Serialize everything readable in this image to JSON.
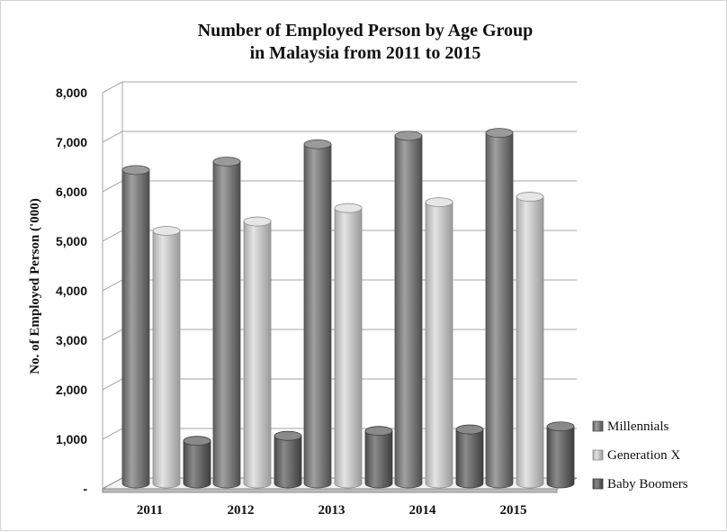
{
  "chart_data": {
    "type": "bar",
    "title": "Number of Employed Person by Age Group",
    "subtitle": "in Malaysia from 2011 to 2015",
    "xlabel": "",
    "ylabel": "No. of Employed Person ('000)",
    "categories": [
      "2011",
      "2012",
      "2013",
      "2014",
      "2015"
    ],
    "series": [
      {
        "name": "Millennials",
        "values": [
          6330,
          6500,
          6850,
          7020,
          7080
        ]
      },
      {
        "name": "Generation X",
        "values": [
          5100,
          5290,
          5560,
          5680,
          5790
        ]
      },
      {
        "name": "Baby Boomers",
        "values": [
          860,
          960,
          1060,
          1090,
          1150
        ]
      }
    ],
    "ylim": [
      0,
      8000
    ],
    "yticks": [
      0,
      1000,
      2000,
      3000,
      4000,
      5000,
      6000,
      7000,
      8000
    ],
    "ytick_labels": [
      "-",
      "1,000",
      "2,000",
      "3,000",
      "4,000",
      "5,000",
      "6,000",
      "7,000",
      "8,000"
    ],
    "grid": true,
    "legend_position": "bottom-right",
    "colors": {
      "Millennials": "#7f7f7f",
      "Generation X": "#c8c8c8",
      "Baby Boomers": "#6f6f6f"
    }
  }
}
